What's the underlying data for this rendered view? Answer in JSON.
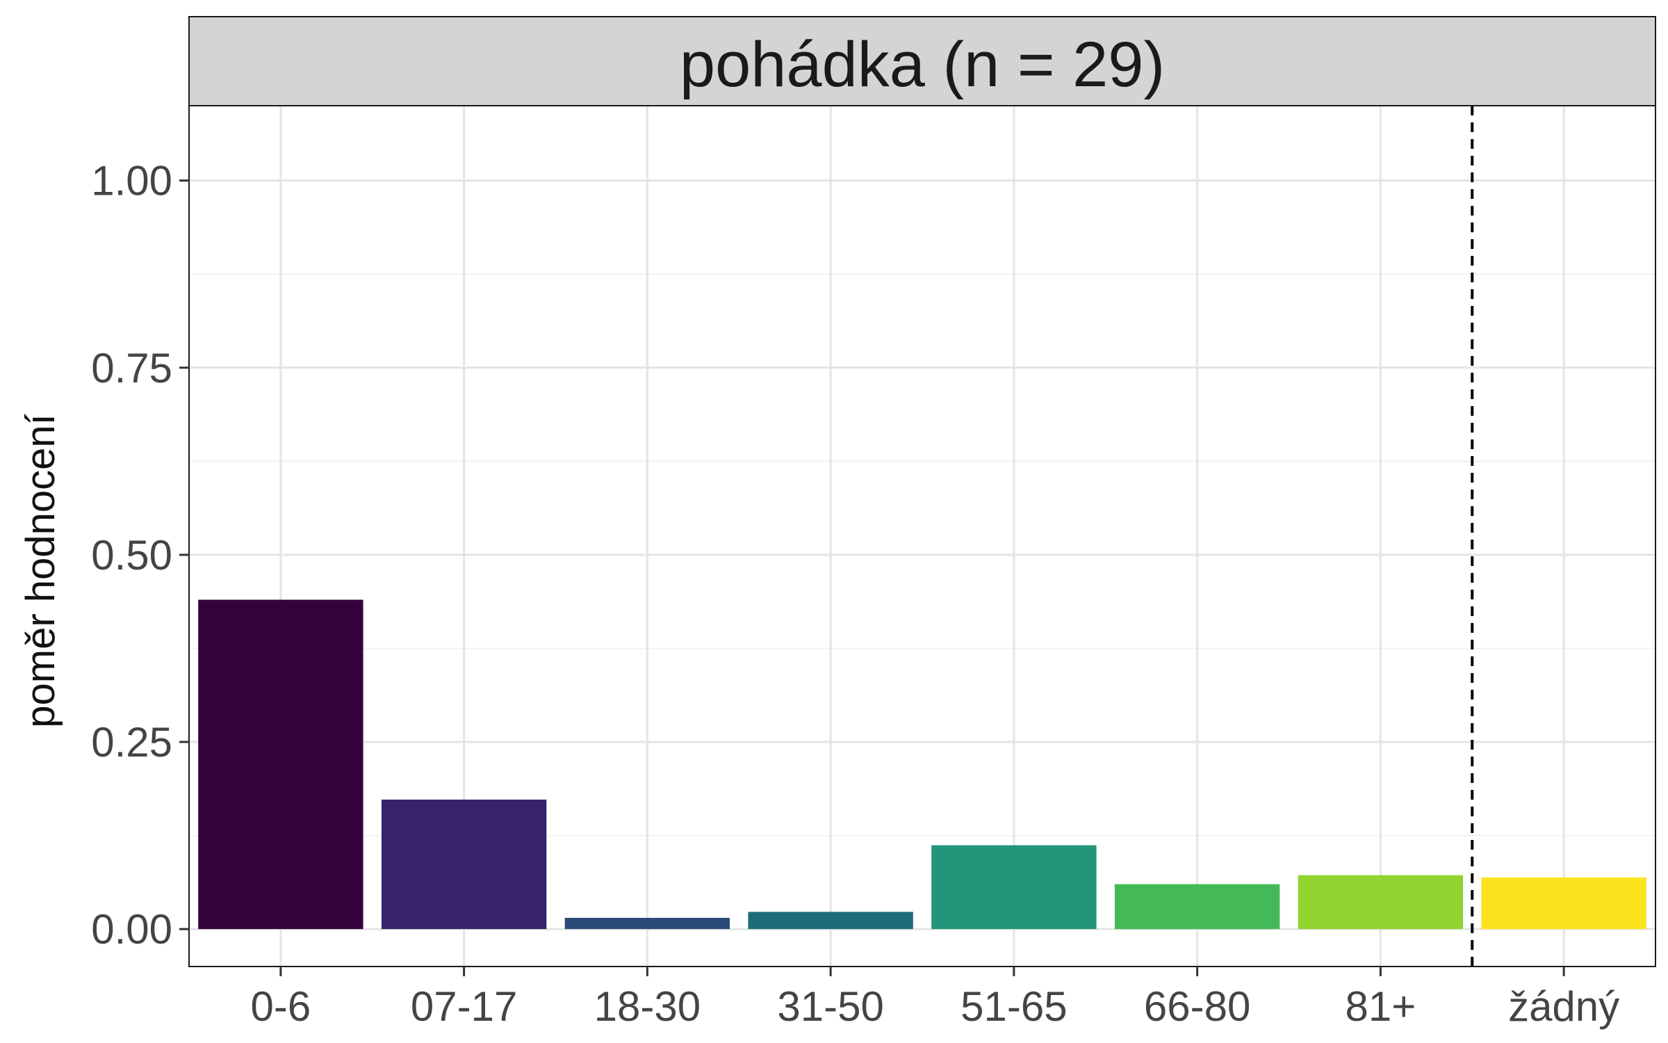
{
  "chart_data": {
    "type": "bar",
    "facet_title": "pohádka (n = 29)",
    "categories": [
      "0-6",
      "07-17",
      "18-30",
      "31-50",
      "51-65",
      "66-80",
      "81+",
      "žádný"
    ],
    "values": [
      0.44,
      0.173,
      0.015,
      0.023,
      0.112,
      0.06,
      0.072,
      0.069
    ],
    "colors": [
      "#35013d",
      "#36236b",
      "#2b4a77",
      "#1f6b7c",
      "#22957a",
      "#43b957",
      "#90d430",
      "#fbe31e"
    ],
    "xlabel": "",
    "ylabel": "poměr hodnocení",
    "ylim": [
      -0.05,
      1.1
    ],
    "yticks": [
      0,
      0.25,
      0.5,
      0.75,
      1.0
    ],
    "ytick_labels": [
      "0.00",
      "0.25",
      "0.50",
      "0.75",
      "1.00"
    ],
    "separator_after_category": "81+",
    "grid": true,
    "legend": "none"
  }
}
